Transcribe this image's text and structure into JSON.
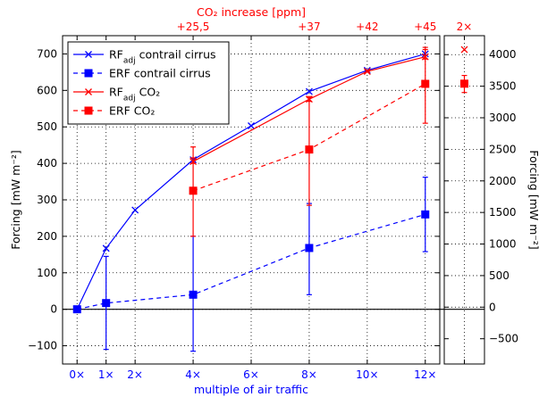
{
  "chart_data": {
    "type": "line",
    "xlabel": "multiple of air traffic",
    "ylabel": "Forcing [mW m⁻²]",
    "top_axis_label": "CO₂ increase [ppm]",
    "right_ylabel": "Forcing [mW m⁻²]",
    "xlim": [
      -0.5,
      12.5
    ],
    "ylim": [
      -150,
      750
    ],
    "x_ticks": [
      0,
      1,
      2,
      4,
      6,
      8,
      10,
      12
    ],
    "x_tick_labels": [
      "0×",
      "1×",
      "2×",
      "4×",
      "6×",
      "8×",
      "10×",
      "12×"
    ],
    "y_ticks": [
      -100,
      0,
      100,
      200,
      300,
      400,
      500,
      600,
      700
    ],
    "top_ticks": [
      4,
      8,
      10,
      12
    ],
    "top_tick_labels": [
      "+25,5",
      "+37",
      "+42",
      "+45"
    ],
    "right_panel": {
      "x_label": "2×",
      "ylim": [
        -900,
        4300
      ],
      "y_ticks": [
        -500,
        0,
        500,
        1000,
        1500,
        2000,
        2500,
        3000,
        3500,
        4000
      ],
      "points": [
        {
          "series": "RF_adj CO2",
          "y": 4080
        },
        {
          "series": "ERF CO2",
          "y": 3540,
          "err_low": 3400,
          "err_high": 3670
        }
      ]
    },
    "colors": {
      "contrail": "#0000ff",
      "co2": "#ff0000",
      "zero_line": "#000000"
    },
    "grid": true,
    "legend_position": "upper-left",
    "series": [
      {
        "name_main": "RF",
        "name_sub": "adj",
        "name_rest": " contrail cirrus",
        "color": "#0000ff",
        "line": "solid",
        "marker": "x",
        "x": [
          0,
          1,
          2,
          4,
          6,
          8,
          10,
          12
        ],
        "y": [
          0,
          167,
          272,
          410,
          503,
          597,
          655,
          700
        ]
      },
      {
        "name_main": "ERF contrail cirrus",
        "name_sub": "",
        "name_rest": "",
        "color": "#0000ff",
        "line": "dashed",
        "marker": "square",
        "x": [
          0,
          1,
          4,
          8,
          12
        ],
        "y": [
          0,
          17,
          40,
          168,
          260
        ],
        "err_low": [
          0,
          -110,
          -115,
          40,
          158
        ],
        "err_high": [
          0,
          145,
          200,
          290,
          362
        ]
      },
      {
        "name_main": "RF",
        "name_sub": "adj",
        "name_rest": " CO₂",
        "color": "#ff0000",
        "line": "solid",
        "marker": "x",
        "x": [
          4,
          8,
          10,
          12
        ],
        "y": [
          405,
          576,
          652,
          692
        ],
        "err_low": [
          400,
          570,
          650,
          686
        ],
        "err_high": [
          415,
          583,
          656,
          712
        ]
      },
      {
        "name_main": "ERF CO₂",
        "name_sub": "",
        "name_rest": "",
        "color": "#ff0000",
        "line": "dashed",
        "marker": "square",
        "x": [
          4,
          8,
          12
        ],
        "y": [
          325,
          438,
          618
        ],
        "err_low": [
          200,
          285,
          510
        ],
        "err_high": [
          445,
          580,
          718
        ]
      }
    ]
  }
}
